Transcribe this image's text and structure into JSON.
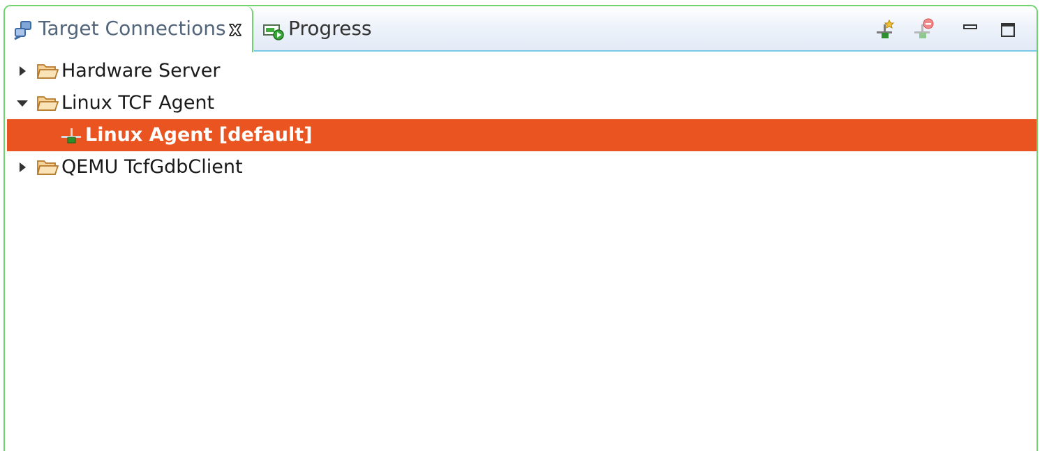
{
  "tabs": {
    "active": {
      "label": "Target Connections",
      "icon": "target-connections-icon"
    },
    "inactive": {
      "label": "Progress",
      "icon": "progress-icon"
    }
  },
  "toolbar": {
    "buttons": [
      {
        "name": "new-connection-button",
        "icon": "new-connection-icon"
      },
      {
        "name": "disconnect-button",
        "icon": "disconnect-icon"
      },
      {
        "name": "minimize-button",
        "icon": "minimize-icon"
      },
      {
        "name": "maximize-button",
        "icon": "maximize-icon"
      }
    ]
  },
  "tree": {
    "items": [
      {
        "label": "Hardware Server",
        "expanded": false,
        "icon": "folder-icon"
      },
      {
        "label": "Linux TCF Agent",
        "expanded": true,
        "icon": "folder-icon",
        "children": [
          {
            "label": "Linux Agent [default]",
            "selected": true,
            "icon": "agent-connection-icon"
          }
        ]
      },
      {
        "label": "QEMU TcfGdbClient",
        "expanded": false,
        "icon": "folder-icon"
      }
    ]
  },
  "colors": {
    "selection": "#e95420",
    "active_border": "#6fd36f",
    "folder": "#e0a84a"
  }
}
